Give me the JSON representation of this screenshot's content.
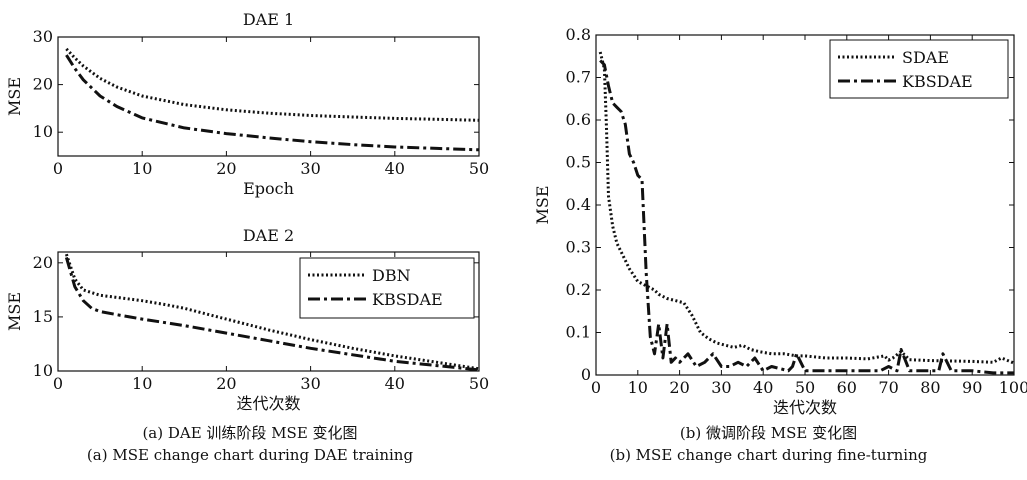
{
  "chart_data": [
    {
      "type": "line",
      "title": "DAE 1",
      "xlabel": "Epoch",
      "ylabel": "MSE",
      "xlim": [
        0,
        50
      ],
      "ylim": [
        5,
        30
      ],
      "xticks": [
        "0",
        "10",
        "20",
        "30",
        "40",
        "50"
      ],
      "yticks": [
        "10",
        "20",
        "30"
      ],
      "legend": "none",
      "series": [
        {
          "style": "dotted",
          "x": [
            1,
            2,
            3,
            5,
            7,
            10,
            15,
            20,
            25,
            30,
            35,
            40,
            45,
            50
          ],
          "values": [
            27.5,
            25.6,
            23.9,
            21.3,
            19.5,
            17.6,
            15.8,
            14.7,
            14.0,
            13.5,
            13.2,
            12.9,
            12.7,
            12.5
          ]
        },
        {
          "style": "dashdot",
          "x": [
            1,
            2,
            3,
            5,
            7,
            10,
            15,
            20,
            25,
            30,
            35,
            40,
            45,
            50
          ],
          "values": [
            26.2,
            23.4,
            21.0,
            17.6,
            15.4,
            13.0,
            10.9,
            9.7,
            8.8,
            8.0,
            7.4,
            6.9,
            6.6,
            6.3
          ]
        }
      ]
    },
    {
      "type": "line",
      "title": "DAE 2",
      "xlabel": "迭代次数",
      "ylabel": "MSE",
      "xlim": [
        0,
        50
      ],
      "ylim": [
        10,
        21
      ],
      "xticks": [
        "0",
        "10",
        "20",
        "30",
        "40",
        "50"
      ],
      "yticks": [
        "10",
        "15",
        "20"
      ],
      "legend": "top-right",
      "series": [
        {
          "name": "DBN",
          "style": "dotted",
          "x": [
            1,
            2,
            3,
            5,
            7,
            10,
            13,
            15,
            20,
            25,
            30,
            35,
            40,
            45,
            50
          ],
          "values": [
            20.8,
            18.5,
            17.5,
            17.0,
            16.8,
            16.5,
            16.1,
            15.8,
            14.8,
            13.8,
            12.9,
            12.1,
            11.4,
            10.8,
            10.2
          ]
        },
        {
          "name": "KBSDAE",
          "style": "dashdot",
          "x": [
            1,
            2,
            3,
            4,
            5,
            7,
            10,
            15,
            20,
            25,
            30,
            35,
            40,
            45,
            50
          ],
          "values": [
            20.5,
            17.8,
            16.5,
            15.8,
            15.5,
            15.2,
            14.8,
            14.2,
            13.5,
            12.8,
            12.1,
            11.5,
            10.9,
            10.5,
            10.1
          ]
        }
      ]
    },
    {
      "type": "line",
      "title": "",
      "xlabel": "迭代次数",
      "ylabel": "MSE",
      "xlim": [
        0,
        100
      ],
      "ylim": [
        0,
        0.8
      ],
      "xticks": [
        "0",
        "10",
        "20",
        "30",
        "40",
        "50",
        "60",
        "70",
        "80",
        "90",
        "100"
      ],
      "yticks": [
        "0",
        "0.1",
        "0.2",
        "0.3",
        "0.4",
        "0.5",
        "0.6",
        "0.7",
        "0.8"
      ],
      "legend": "top-right",
      "series": [
        {
          "name": "SDAE",
          "style": "dotted",
          "x": [
            1,
            2,
            2.5,
            3,
            4,
            5,
            6,
            7,
            8,
            9,
            10,
            11,
            12,
            13,
            14,
            15,
            17,
            19,
            21,
            23,
            25,
            27,
            29,
            31,
            33,
            35,
            37,
            39,
            42,
            45,
            48,
            50,
            55,
            60,
            65,
            69,
            70,
            71,
            73,
            75,
            80,
            85,
            90,
            95,
            97,
            100
          ],
          "values": [
            0.76,
            0.72,
            0.58,
            0.42,
            0.35,
            0.31,
            0.29,
            0.27,
            0.25,
            0.235,
            0.22,
            0.215,
            0.21,
            0.205,
            0.2,
            0.19,
            0.18,
            0.175,
            0.17,
            0.14,
            0.1,
            0.085,
            0.075,
            0.07,
            0.065,
            0.07,
            0.06,
            0.055,
            0.05,
            0.05,
            0.045,
            0.045,
            0.04,
            0.04,
            0.038,
            0.045,
            0.035,
            0.04,
            0.055,
            0.036,
            0.034,
            0.033,
            0.032,
            0.03,
            0.04,
            0.028
          ]
        },
        {
          "name": "KBSDAE",
          "style": "dashdot",
          "x": [
            1,
            2,
            3,
            4,
            5,
            6,
            7,
            8,
            9,
            10,
            11,
            12,
            13,
            14,
            15,
            16,
            17,
            18,
            19,
            20,
            22,
            24,
            26,
            28,
            30,
            32,
            34,
            36,
            38,
            40,
            42,
            44,
            46,
            47,
            48,
            50,
            55,
            60,
            65,
            68,
            70,
            72,
            73,
            75,
            80,
            82,
            83,
            85,
            90,
            95,
            100
          ],
          "values": [
            0.74,
            0.73,
            0.68,
            0.64,
            0.63,
            0.62,
            0.59,
            0.52,
            0.5,
            0.47,
            0.46,
            0.24,
            0.09,
            0.05,
            0.12,
            0.04,
            0.12,
            0.03,
            0.04,
            0.03,
            0.05,
            0.02,
            0.03,
            0.05,
            0.02,
            0.02,
            0.03,
            0.02,
            0.04,
            0.01,
            0.02,
            0.015,
            0.01,
            0.02,
            0.05,
            0.01,
            0.01,
            0.01,
            0.01,
            0.01,
            0.02,
            0.01,
            0.06,
            0.01,
            0.01,
            0.01,
            0.05,
            0.01,
            0.01,
            0.005,
            0.005
          ]
        }
      ]
    }
  ],
  "captions": {
    "left_cn": "(a) DAE 训练阶段 MSE 变化图",
    "left_en": "(a) MSE change chart during DAE training",
    "right_cn": "(b) 微调阶段 MSE 变化图",
    "right_en": "(b) MSE change chart during fine-turning"
  }
}
